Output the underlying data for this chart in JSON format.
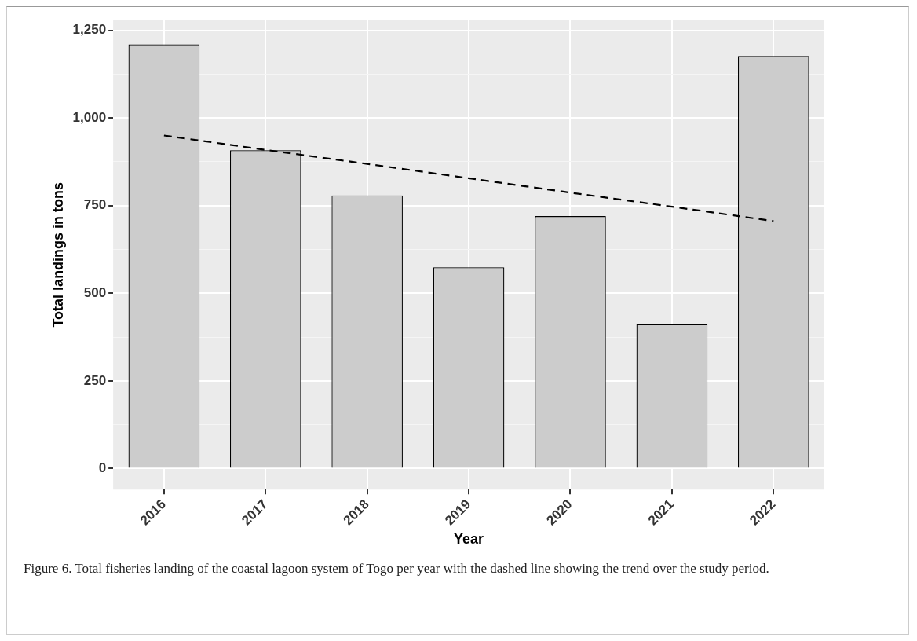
{
  "chart_data": {
    "type": "bar",
    "xlabel": "Year",
    "ylabel": "Total landings in tons",
    "categories": [
      "2016",
      "2017",
      "2018",
      "2019",
      "2020",
      "2021",
      "2022"
    ],
    "series": [
      {
        "color": "#cccccc",
        "values": [
          1210,
          908,
          779,
          574,
          720,
          412,
          1177
        ]
      },
      {
        "type": "line",
        "color": "#000000",
        "line_style": "dashed",
        "marker": "none",
        "values": [
          950,
          909,
          869,
          828,
          787,
          747,
          706
        ]
      }
    ],
    "ylim": [
      -60,
      1280
    ],
    "yticks": [
      0,
      {
        "value": 125,
        "label": null
      },
      250,
      {
        "value": 375,
        "label": null
      },
      500,
      {
        "value": 625,
        "label": null
      },
      750,
      {
        "value": 875,
        "label": null
      },
      {
        "value": 1000,
        "label": "1,000"
      },
      {
        "value": 1125,
        "label": null
      },
      {
        "value": 1250,
        "label": "1,250"
      }
    ],
    "grid": true,
    "legend": false,
    "annotations": [
      "Figure 6. Total fisheries landing of the coastal lagoon system of Togo per year with the dashed line showing the trend over the study period."
    ]
  }
}
